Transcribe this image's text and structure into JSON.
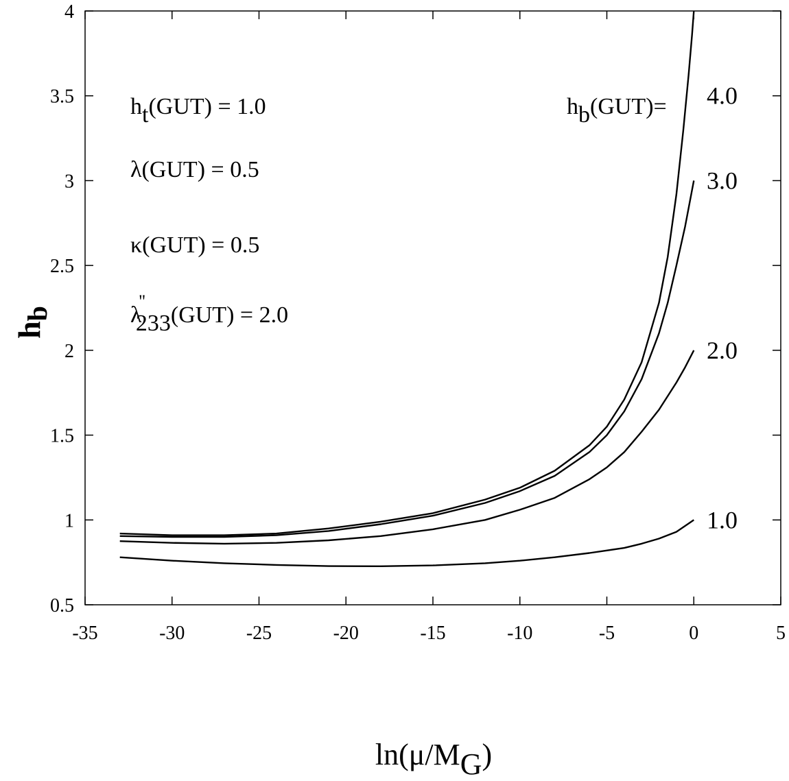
{
  "chart_data": {
    "type": "line",
    "xlabel": {
      "main": "ln(μ/M",
      "sub": "G",
      "close": ")"
    },
    "ylabel": {
      "main": "h",
      "sub": "b"
    },
    "xlim": [
      -35,
      5
    ],
    "ylim": [
      0.5,
      4
    ],
    "xticks": [
      -35,
      -30,
      -25,
      -20,
      -15,
      -10,
      -5,
      0,
      5
    ],
    "xtick_labels": [
      "-35",
      "-30",
      "-25",
      "-20",
      "-15",
      "-10",
      "-5",
      "0",
      "5"
    ],
    "yticks": [
      0.5,
      1,
      1.5,
      2,
      2.5,
      3,
      3.5,
      4
    ],
    "ytick_labels": [
      "0.5",
      "1",
      "1.5",
      "2",
      "2.5",
      "3",
      "3.5",
      "4"
    ],
    "grid": false,
    "annotations": [
      {
        "main": "h",
        "sub": "t",
        "rest": "(GUT) = 1.0"
      },
      {
        "main": "λ",
        "sub": "",
        "rest": "(GUT) = 0.5"
      },
      {
        "main": "κ",
        "sub": "",
        "rest": "(GUT) = 0.5"
      },
      {
        "main": "λ",
        "sup": "''",
        "sub": "233",
        "rest": "(GUT) = 2.0"
      }
    ],
    "series_header": {
      "main": "h",
      "sub": "b",
      "rest": "(GUT)="
    },
    "series": [
      {
        "label": "4.0",
        "x": [
          -33,
          -30,
          -27,
          -24,
          -21,
          -18,
          -15,
          -12,
          -10,
          -8,
          -6,
          -5,
          -4,
          -3,
          -2,
          -1.5,
          -1,
          -0.6,
          -0.3,
          -0.1,
          0
        ],
        "y": [
          0.92,
          0.91,
          0.91,
          0.92,
          0.95,
          0.99,
          1.04,
          1.12,
          1.19,
          1.29,
          1.44,
          1.55,
          1.71,
          1.93,
          2.28,
          2.55,
          2.92,
          3.3,
          3.62,
          3.86,
          4.0
        ]
      },
      {
        "label": "3.0",
        "x": [
          -33,
          -30,
          -27,
          -24,
          -21,
          -18,
          -15,
          -12,
          -10,
          -8,
          -6,
          -5,
          -4,
          -3,
          -2,
          -1.5,
          -1,
          -0.5,
          0
        ],
        "y": [
          0.905,
          0.9,
          0.9,
          0.91,
          0.935,
          0.975,
          1.025,
          1.1,
          1.17,
          1.26,
          1.4,
          1.5,
          1.64,
          1.83,
          2.1,
          2.28,
          2.5,
          2.73,
          3.0
        ]
      },
      {
        "label": "2.0",
        "x": [
          -33,
          -30,
          -27,
          -24,
          -21,
          -18,
          -15,
          -12,
          -10,
          -8,
          -6,
          -5,
          -4,
          -3,
          -2,
          -1,
          -0.5,
          0
        ],
        "y": [
          0.875,
          0.865,
          0.86,
          0.865,
          0.88,
          0.905,
          0.945,
          1.0,
          1.06,
          1.13,
          1.24,
          1.31,
          1.4,
          1.52,
          1.65,
          1.81,
          1.9,
          2.0
        ]
      },
      {
        "label": "1.0",
        "x": [
          -33,
          -30,
          -27,
          -24,
          -21,
          -18,
          -15,
          -12,
          -10,
          -8,
          -6,
          -4,
          -3,
          -2,
          -1,
          0
        ],
        "y": [
          0.78,
          0.76,
          0.745,
          0.735,
          0.728,
          0.727,
          0.732,
          0.745,
          0.76,
          0.78,
          0.805,
          0.835,
          0.86,
          0.89,
          0.93,
          1.0
        ]
      }
    ]
  }
}
